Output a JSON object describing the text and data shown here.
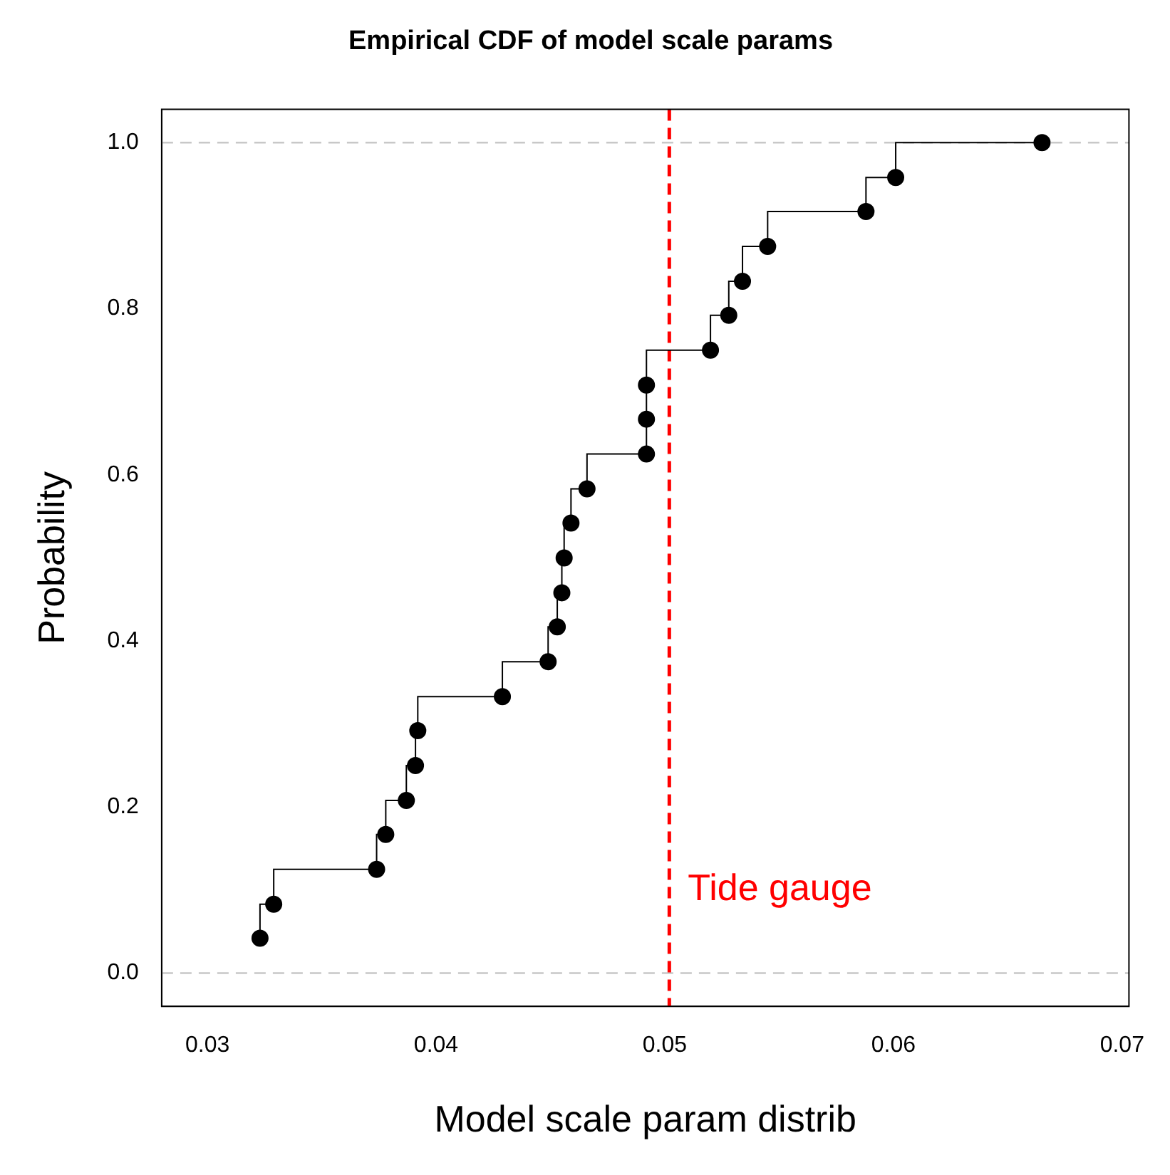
{
  "chart_data": {
    "type": "step",
    "title": "Empirical CDF of model scale params",
    "xlabel": "Model scale param distrib",
    "ylabel": "Probability",
    "xlim": [
      0.028,
      0.0703
    ],
    "xticks": [
      0.03,
      0.04,
      0.05,
      0.06,
      0.07
    ],
    "ylim": [
      -0.04,
      1.04
    ],
    "yticks": [
      {
        "value": 0,
        "label": "0.0"
      },
      0.2,
      0.4,
      0.6,
      0.8,
      {
        "value": 1,
        "label": "1.0"
      }
    ],
    "grid": false,
    "legend": false,
    "marker": "circle",
    "series": [
      {
        "color": "#000000",
        "x": [
          0.0323,
          0.0329,
          0.0374,
          0.0378,
          0.0387,
          0.0391,
          0.0392,
          0.0429,
          0.0449,
          0.0453,
          0.0455,
          0.0456,
          0.0459,
          0.0466,
          0.0492,
          0.0492,
          0.0492,
          0.052,
          0.0528,
          0.0534,
          0.0545,
          0.0588,
          0.0601,
          0.0665
        ],
        "values": [
          0.042,
          0.083,
          0.125,
          0.167,
          0.208,
          0.25,
          0.292,
          0.333,
          0.375,
          0.417,
          0.458,
          0.5,
          0.542,
          0.583,
          0.625,
          0.667,
          0.708,
          0.75,
          0.792,
          0.833,
          0.875,
          0.917,
          0.958,
          1.0
        ]
      }
    ],
    "ref_lines": [
      {
        "axis": "y",
        "value": 0,
        "color": "#c8c8c8",
        "line_style": "dashed"
      },
      {
        "axis": "y",
        "value": 1,
        "color": "#c8c8c8",
        "line_style": "dashed"
      },
      {
        "axis": "x",
        "value": 0.0502,
        "label": "Tide gauge",
        "color": "#ff0000",
        "line_style": "dashed"
      }
    ]
  }
}
